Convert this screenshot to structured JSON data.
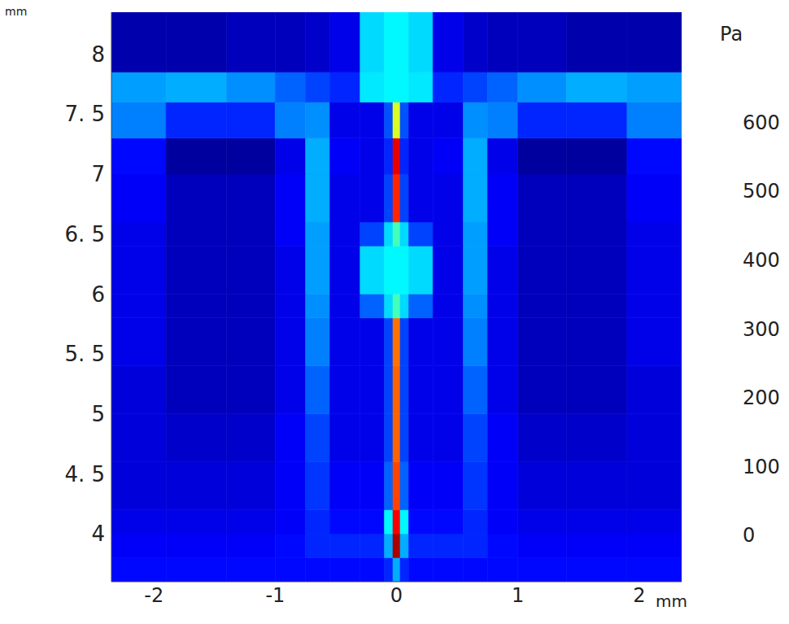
{
  "chart_data": {
    "type": "heatmap",
    "xlabel": "mm",
    "ylabel": "mm",
    "xlim": [
      -2.35,
      2.35
    ],
    "ylim": [
      3.6,
      8.35
    ],
    "xticks": [
      -2,
      -1,
      0,
      1,
      2
    ],
    "yticks": [
      4,
      {
        "value": 4.5,
        "label": "4. 5"
      },
      5,
      {
        "value": 5.5,
        "label": "5. 5"
      },
      6,
      {
        "value": 6.5,
        "label": "6. 5"
      },
      7,
      {
        "value": 7.5,
        "label": "7. 5"
      },
      8
    ],
    "x_bins": [
      -2.35,
      -1.9,
      -1.4,
      -1.0,
      -0.75,
      -0.55,
      -0.3,
      -0.1,
      -0.03,
      0.03,
      0.1,
      0.3,
      0.55,
      0.75,
      1.0,
      1.4,
      1.9,
      2.35
    ],
    "y_bins": [
      3.6,
      3.8,
      4.0,
      4.2,
      4.6,
      5.0,
      5.4,
      5.8,
      6.0,
      6.4,
      6.6,
      7.0,
      7.3,
      7.6,
      7.85,
      8.35
    ],
    "values": [
      [
        40,
        40,
        40,
        40,
        40,
        40,
        40,
        60,
        150,
        60,
        40,
        40,
        40,
        40,
        40,
        40,
        40
      ],
      [
        30,
        30,
        30,
        40,
        60,
        60,
        60,
        150,
        600,
        150,
        60,
        60,
        60,
        40,
        30,
        30,
        30
      ],
      [
        20,
        20,
        20,
        30,
        60,
        40,
        40,
        200,
        550,
        200,
        40,
        40,
        60,
        30,
        20,
        20,
        20
      ],
      [
        10,
        10,
        10,
        30,
        70,
        30,
        30,
        100,
        500,
        100,
        30,
        30,
        70,
        30,
        10,
        10,
        10
      ],
      [
        10,
        0,
        0,
        30,
        80,
        20,
        20,
        80,
        480,
        80,
        20,
        20,
        80,
        30,
        0,
        0,
        10
      ],
      [
        10,
        -10,
        -10,
        20,
        100,
        20,
        20,
        80,
        480,
        80,
        20,
        20,
        100,
        20,
        -10,
        -10,
        10
      ],
      [
        20,
        -10,
        -10,
        20,
        120,
        20,
        20,
        80,
        470,
        80,
        20,
        20,
        120,
        20,
        -10,
        -10,
        20
      ],
      [
        20,
        -10,
        -10,
        20,
        130,
        20,
        100,
        180,
        250,
        180,
        100,
        20,
        130,
        20,
        -10,
        -10,
        20
      ],
      [
        20,
        -10,
        -10,
        20,
        140,
        20,
        180,
        200,
        200,
        200,
        180,
        20,
        140,
        20,
        -10,
        -10,
        20
      ],
      [
        20,
        -10,
        -10,
        30,
        140,
        20,
        80,
        180,
        250,
        180,
        80,
        20,
        140,
        30,
        -10,
        -10,
        20
      ],
      [
        30,
        -10,
        -10,
        30,
        150,
        20,
        20,
        80,
        520,
        80,
        20,
        20,
        150,
        30,
        -10,
        -10,
        30
      ],
      [
        40,
        -30,
        -30,
        20,
        150,
        30,
        20,
        60,
        560,
        60,
        20,
        30,
        150,
        20,
        -30,
        -30,
        40
      ],
      [
        120,
        60,
        60,
        120,
        130,
        20,
        20,
        90,
        350,
        90,
        20,
        20,
        130,
        120,
        60,
        60,
        120
      ],
      [
        140,
        150,
        130,
        100,
        80,
        60,
        190,
        200,
        200,
        200,
        190,
        60,
        80,
        100,
        130,
        150,
        140
      ],
      [
        -20,
        -20,
        -10,
        -10,
        0,
        20,
        180,
        200,
        200,
        200,
        180,
        20,
        0,
        -10,
        -10,
        -20,
        -20
      ]
    ],
    "colorbar": {
      "label": "Pa",
      "range": [
        -50,
        630
      ],
      "ticks": [
        0,
        100,
        200,
        300,
        400,
        500,
        600
      ]
    }
  }
}
